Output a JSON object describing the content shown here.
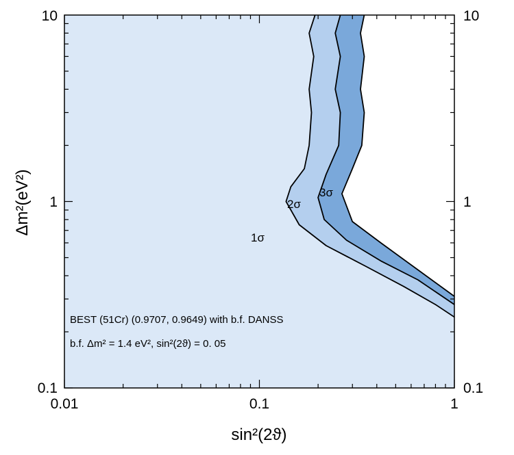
{
  "chart_data": {
    "type": "area",
    "xscale": "log",
    "yscale": "log",
    "xlim": [
      0.01,
      1
    ],
    "ylim": [
      0.1,
      10
    ],
    "xlabel": "sin²(2ϑ)",
    "ylabel": "Δm²(eV²)",
    "x_tick_labels": [
      "0.01",
      "0.1",
      "1"
    ],
    "y_tick_labels": [
      "0.1",
      "1",
      "10"
    ],
    "regions": [
      {
        "label": "1σ",
        "color": "#dbe8f7",
        "boundary": [
          [
            0.193,
            10
          ],
          [
            0.18,
            8
          ],
          [
            0.19,
            6
          ],
          [
            0.18,
            4
          ],
          [
            0.185,
            3
          ],
          [
            0.18,
            2
          ],
          [
            0.17,
            1.5
          ],
          [
            0.145,
            1.2
          ],
          [
            0.137,
            1.0
          ],
          [
            0.16,
            0.75
          ],
          [
            0.22,
            0.58
          ],
          [
            0.35,
            0.45
          ],
          [
            0.55,
            0.35
          ],
          [
            0.8,
            0.28
          ],
          [
            1.0,
            0.24
          ]
        ]
      },
      {
        "label": "2σ",
        "color": "#b4cfee",
        "boundary": [
          [
            0.26,
            10
          ],
          [
            0.245,
            8
          ],
          [
            0.26,
            6
          ],
          [
            0.245,
            4
          ],
          [
            0.26,
            3
          ],
          [
            0.255,
            2
          ],
          [
            0.22,
            1.4
          ],
          [
            0.2,
            1.05
          ],
          [
            0.215,
            0.8
          ],
          [
            0.28,
            0.62
          ],
          [
            0.42,
            0.48
          ],
          [
            0.65,
            0.38
          ],
          [
            1.0,
            0.28
          ]
        ]
      },
      {
        "label": "3σ",
        "color": "#7aa8da",
        "boundary": [
          [
            0.345,
            10
          ],
          [
            0.33,
            8
          ],
          [
            0.345,
            6
          ],
          [
            0.33,
            4
          ],
          [
            0.345,
            3
          ],
          [
            0.335,
            2
          ],
          [
            0.3,
            1.5
          ],
          [
            0.265,
            1.1
          ],
          [
            0.3,
            0.78
          ],
          [
            0.42,
            0.6
          ],
          [
            0.65,
            0.43
          ],
          [
            1.0,
            0.31
          ]
        ]
      }
    ],
    "annotations": [
      {
        "id": "dataset",
        "text": "BEST (51Cr) (0.9707, 0.9649) with b.f. DANSS"
      },
      {
        "id": "best_fit",
        "text": "b.f.  Δm² = 1.4 eV², sin²(2ϑ) = 0. 05"
      }
    ],
    "grid": false,
    "legend": "none"
  }
}
